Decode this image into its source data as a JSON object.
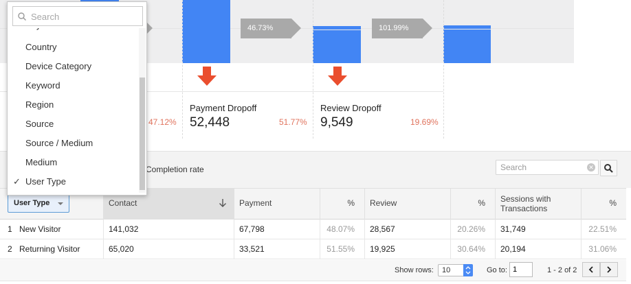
{
  "funnel": {
    "rates": [
      "46.73%",
      "101.99%"
    ],
    "partial_left_pct": "47.12%",
    "stages": [
      {
        "title": "Payment Dropoff",
        "value": "52,448",
        "pct": "51.77%"
      },
      {
        "title": "Review Dropoff",
        "value": "9,549",
        "pct": "19.69%"
      }
    ]
  },
  "colors": {
    "bar": "#4285f4",
    "dropoff": "#e0735d",
    "arrow": "#ea4e2e"
  },
  "toolbar": {
    "completion_rate_label": "Completion rate",
    "search_placeholder": "Search"
  },
  "table": {
    "dimension_button": "User Type",
    "columns": {
      "contact": "Contact",
      "payment": "Payment",
      "payment_pct": "%",
      "review": "Review",
      "review_pct": "%",
      "sessions": "Sessions with Transactions",
      "sessions_pct": "%"
    },
    "rows": [
      {
        "num": "1",
        "user_type": "New Visitor",
        "contact": "141,032",
        "payment": "67,798",
        "payment_pct": "48.07%",
        "review": "28,567",
        "review_pct": "20.26%",
        "sessions": "31,749",
        "sessions_pct": "22.51%"
      },
      {
        "num": "2",
        "user_type": "Returning Visitor",
        "contact": "65,020",
        "payment": "33,521",
        "payment_pct": "51.55%",
        "review": "19,925",
        "review_pct": "30.64%",
        "sessions": "20,194",
        "sessions_pct": "31.06%"
      }
    ]
  },
  "footer": {
    "show_rows_label": "Show rows:",
    "show_rows_value": "10",
    "goto_label": "Go to:",
    "goto_value": "1",
    "range": "1 - 2 of 2"
  },
  "dropdown": {
    "search_placeholder": "Search",
    "partial_top_item": "City",
    "items": [
      "Country",
      "Device Category",
      "Keyword",
      "Region",
      "Source",
      "Source / Medium",
      "Medium",
      "User Type"
    ],
    "selected": "User Type"
  }
}
